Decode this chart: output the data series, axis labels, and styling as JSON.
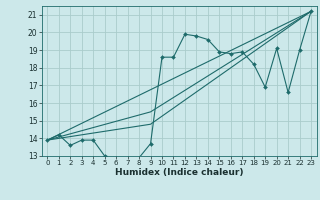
{
  "xlabel": "Humidex (Indice chaleur)",
  "bg_color": "#cce8ea",
  "grid_color": "#aacccc",
  "line_color": "#1e6b6b",
  "xlim": [
    -0.5,
    23.5
  ],
  "ylim": [
    13,
    21.5
  ],
  "xticks": [
    0,
    1,
    2,
    3,
    4,
    5,
    6,
    7,
    8,
    9,
    10,
    11,
    12,
    13,
    14,
    15,
    16,
    17,
    18,
    19,
    20,
    21,
    22,
    23
  ],
  "yticks": [
    13,
    14,
    15,
    16,
    17,
    18,
    19,
    20,
    21
  ],
  "line1_x": [
    0,
    1,
    2,
    3,
    4,
    5,
    6,
    7,
    8,
    9,
    10,
    11,
    12,
    13,
    14,
    15,
    16,
    17,
    18,
    19,
    20,
    21,
    22,
    23
  ],
  "line1_y": [
    13.9,
    14.2,
    13.6,
    13.9,
    13.9,
    13.0,
    12.9,
    12.9,
    12.9,
    13.7,
    18.6,
    18.6,
    19.9,
    19.8,
    19.6,
    18.9,
    18.8,
    18.9,
    18.2,
    16.9,
    19.1,
    16.6,
    19.0,
    21.2
  ],
  "line2_x": [
    0,
    23
  ],
  "line2_y": [
    13.9,
    21.2
  ],
  "line3_x": [
    0,
    9,
    23
  ],
  "line3_y": [
    13.9,
    15.5,
    21.2
  ],
  "line4_x": [
    0,
    9,
    23
  ],
  "line4_y": [
    13.9,
    14.8,
    21.2
  ]
}
